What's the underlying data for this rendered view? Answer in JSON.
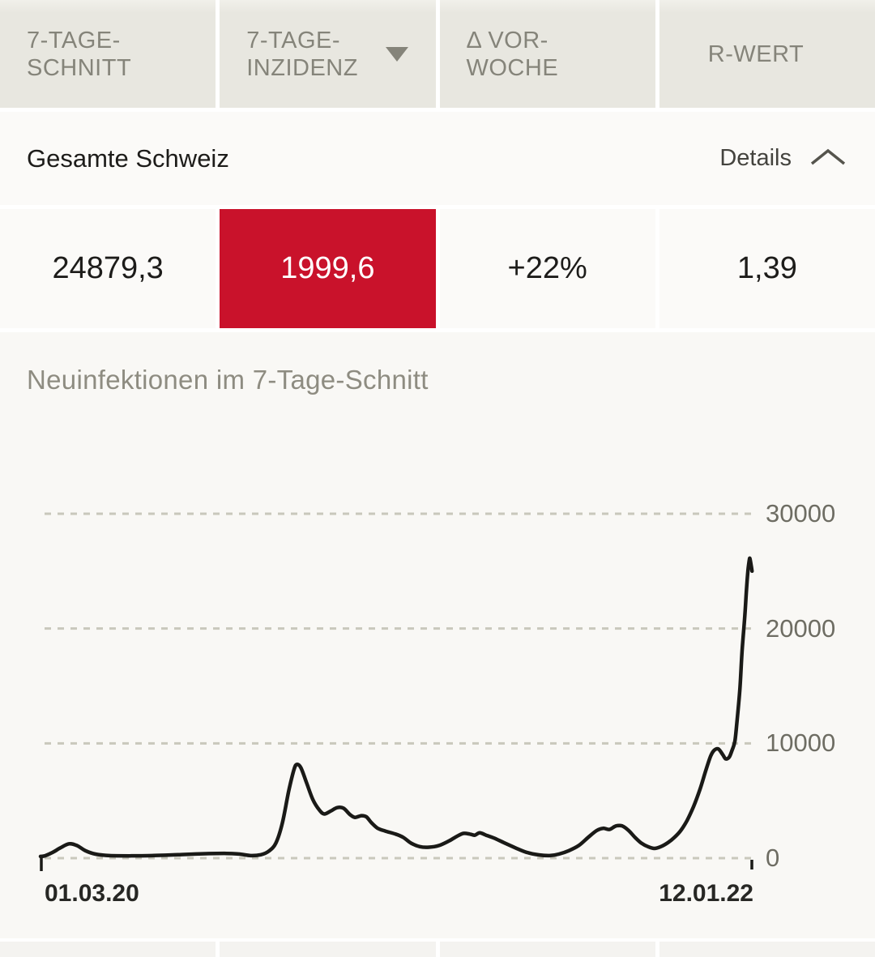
{
  "colors": {
    "accent_red": "#c9122b",
    "header_bg": "#e8e7e0",
    "header_text": "#85847a",
    "page_bg": "#f9f8f5",
    "card_bg": "#fbfaf8",
    "grid": "#c9c8bc",
    "axis_label": "#6e6d63",
    "line": "#1a1a17",
    "text_dark": "#1d1c1a",
    "title_muted": "#8e8c81"
  },
  "table": {
    "header": {
      "cols": [
        {
          "line1": "7-TAGE-",
          "line2": "SCHNITT",
          "sorted": false
        },
        {
          "line1": "7-TAGE-",
          "line2": "INZIDENZ",
          "sorted": true,
          "sort_direction": "desc"
        },
        {
          "line1": "Δ VOR-",
          "line2": "WOCHE",
          "sorted": false
        },
        {
          "line1": "R-WERT",
          "line2": "",
          "sorted": false
        }
      ]
    },
    "region_row": {
      "name": "Gesamte Schweiz",
      "details_label": "Details",
      "expanded": true
    },
    "values_row": {
      "cells": [
        {
          "value": "24879,3",
          "highlight": false
        },
        {
          "value": "1999,6",
          "highlight": true
        },
        {
          "value": "+22%",
          "highlight": false
        },
        {
          "value": "1,39",
          "highlight": false
        }
      ]
    }
  },
  "chart_data": {
    "type": "line",
    "title": "Neuinfektionen im 7-Tage-Schnitt",
    "xlabel": "",
    "ylabel": "",
    "x_range_labels": [
      "01.03.20",
      "12.01.22"
    ],
    "ylim": [
      0,
      30000
    ],
    "yticks": [
      {
        "value": 0,
        "label": "0"
      },
      {
        "value": 10000,
        "label": "10000"
      },
      {
        "value": 20000,
        "label": "20000"
      },
      {
        "value": 30000,
        "label": "30000"
      }
    ],
    "grid": "dashed-horizontal",
    "legend": "none",
    "line_color": "#1a1a17",
    "series": [
      {
        "name": "Neuinfektionen im 7-Tage-Schnitt",
        "points": [
          [
            0.0,
            150
          ],
          [
            0.006,
            200
          ],
          [
            0.017,
            500
          ],
          [
            0.028,
            900
          ],
          [
            0.04,
            1250
          ],
          [
            0.051,
            1100
          ],
          [
            0.063,
            650
          ],
          [
            0.077,
            350
          ],
          [
            0.097,
            220
          ],
          [
            0.125,
            200
          ],
          [
            0.159,
            230
          ],
          [
            0.193,
            300
          ],
          [
            0.227,
            380
          ],
          [
            0.261,
            410
          ],
          [
            0.278,
            360
          ],
          [
            0.295,
            220
          ],
          [
            0.309,
            300
          ],
          [
            0.32,
            600
          ],
          [
            0.33,
            1300
          ],
          [
            0.339,
            3000
          ],
          [
            0.348,
            5800
          ],
          [
            0.355,
            7600
          ],
          [
            0.359,
            8150
          ],
          [
            0.365,
            7900
          ],
          [
            0.373,
            6600
          ],
          [
            0.382,
            5100
          ],
          [
            0.391,
            4200
          ],
          [
            0.398,
            3850
          ],
          [
            0.407,
            4100
          ],
          [
            0.416,
            4400
          ],
          [
            0.425,
            4350
          ],
          [
            0.434,
            3800
          ],
          [
            0.441,
            3550
          ],
          [
            0.45,
            3700
          ],
          [
            0.457,
            3600
          ],
          [
            0.464,
            3100
          ],
          [
            0.473,
            2600
          ],
          [
            0.484,
            2350
          ],
          [
            0.498,
            2100
          ],
          [
            0.509,
            1800
          ],
          [
            0.52,
            1300
          ],
          [
            0.532,
            1000
          ],
          [
            0.545,
            950
          ],
          [
            0.559,
            1100
          ],
          [
            0.573,
            1500
          ],
          [
            0.584,
            1900
          ],
          [
            0.593,
            2150
          ],
          [
            0.602,
            2100
          ],
          [
            0.609,
            2000
          ],
          [
            0.616,
            2200
          ],
          [
            0.625,
            2000
          ],
          [
            0.636,
            1750
          ],
          [
            0.65,
            1350
          ],
          [
            0.666,
            900
          ],
          [
            0.682,
            500
          ],
          [
            0.699,
            280
          ],
          [
            0.714,
            220
          ],
          [
            0.727,
            350
          ],
          [
            0.741,
            650
          ],
          [
            0.755,
            1100
          ],
          [
            0.768,
            1800
          ],
          [
            0.78,
            2400
          ],
          [
            0.789,
            2600
          ],
          [
            0.798,
            2500
          ],
          [
            0.807,
            2800
          ],
          [
            0.816,
            2800
          ],
          [
            0.825,
            2400
          ],
          [
            0.834,
            1800
          ],
          [
            0.843,
            1300
          ],
          [
            0.852,
            1000
          ],
          [
            0.861,
            850
          ],
          [
            0.87,
            1000
          ],
          [
            0.88,
            1350
          ],
          [
            0.889,
            1800
          ],
          [
            0.898,
            2400
          ],
          [
            0.907,
            3300
          ],
          [
            0.916,
            4500
          ],
          [
            0.925,
            6000
          ],
          [
            0.933,
            7600
          ],
          [
            0.94,
            8900
          ],
          [
            0.945,
            9400
          ],
          [
            0.951,
            9500
          ],
          [
            0.957,
            9000
          ],
          [
            0.961,
            8650
          ],
          [
            0.966,
            8800
          ],
          [
            0.97,
            9400
          ],
          [
            0.974,
            10200
          ],
          [
            0.977,
            12000
          ],
          [
            0.981,
            14800
          ],
          [
            0.984,
            18000
          ],
          [
            0.988,
            21200
          ],
          [
            0.99,
            23200
          ],
          [
            0.992,
            24900
          ],
          [
            0.994,
            25900
          ],
          [
            0.995,
            26100
          ],
          [
            0.997,
            25400
          ],
          [
            0.998,
            25000
          ]
        ]
      }
    ]
  }
}
